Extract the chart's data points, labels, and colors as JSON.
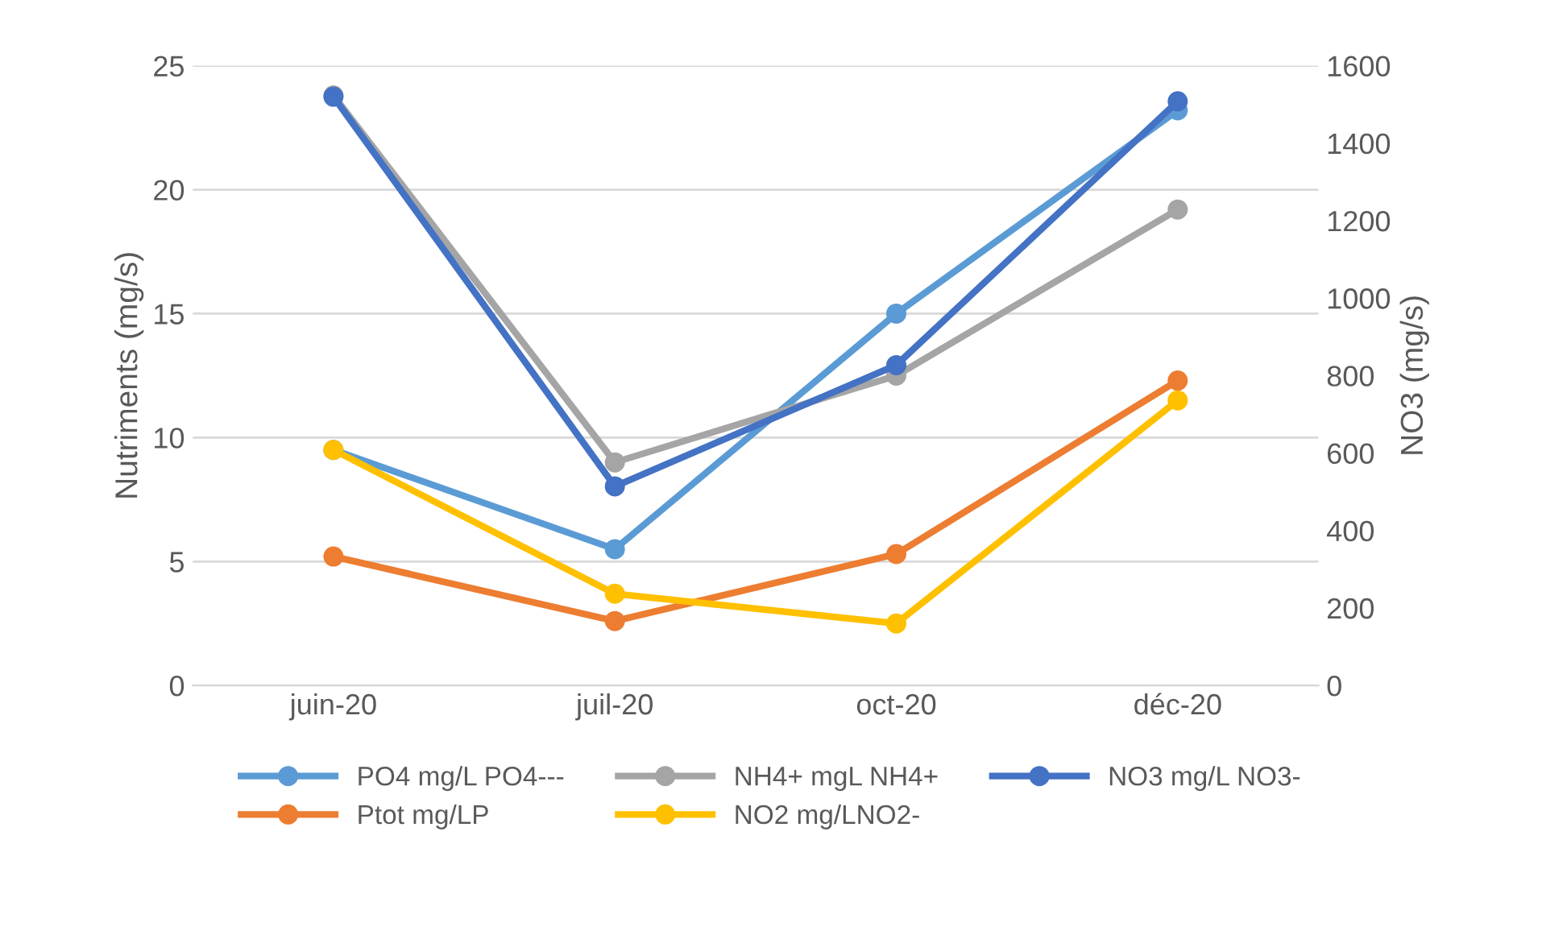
{
  "chart_data": {
    "type": "line",
    "ylabel": "Nutriments (mg/s)",
    "y2label": "NO3 (mg/s)",
    "categories": [
      "juin-20",
      "juil-20",
      "oct-20",
      "déc-20"
    ],
    "series": [
      {
        "name": "PO4 mg/L PO4---",
        "color": "#5b9bd5",
        "values": [
          9.5,
          5.5,
          15.0,
          23.2
        ]
      },
      {
        "name": "Ptot mg/LP",
        "color": "#ed7d31",
        "values": [
          5.2,
          2.6,
          5.3,
          12.3
        ]
      },
      {
        "name": "NH4+ mgL NH4+",
        "color": "#a5a5a5",
        "values": [
          23.8,
          9.0,
          12.5,
          19.2
        ]
      },
      {
        "name": "NO2 mg/LNO2-",
        "color": "#ffc000",
        "values": [
          9.5,
          3.7,
          2.5,
          11.5
        ]
      },
      {
        "name": "NO3 mg/L NO3-",
        "color": "#4472c4",
        "values": [
          1520,
          514,
          827,
          1508
        ],
        "axis": "y2"
      }
    ],
    "ylim": [
      0,
      25
    ],
    "yticks": [
      0,
      5,
      10,
      15,
      20,
      25
    ],
    "y2lim": [
      0,
      1600
    ],
    "y2ticks": [
      0,
      200,
      400,
      600,
      800,
      1000,
      1200,
      1400,
      1600
    ],
    "grid": "y",
    "legend": "bottom",
    "marker": "circle",
    "line_style": "solid"
  }
}
